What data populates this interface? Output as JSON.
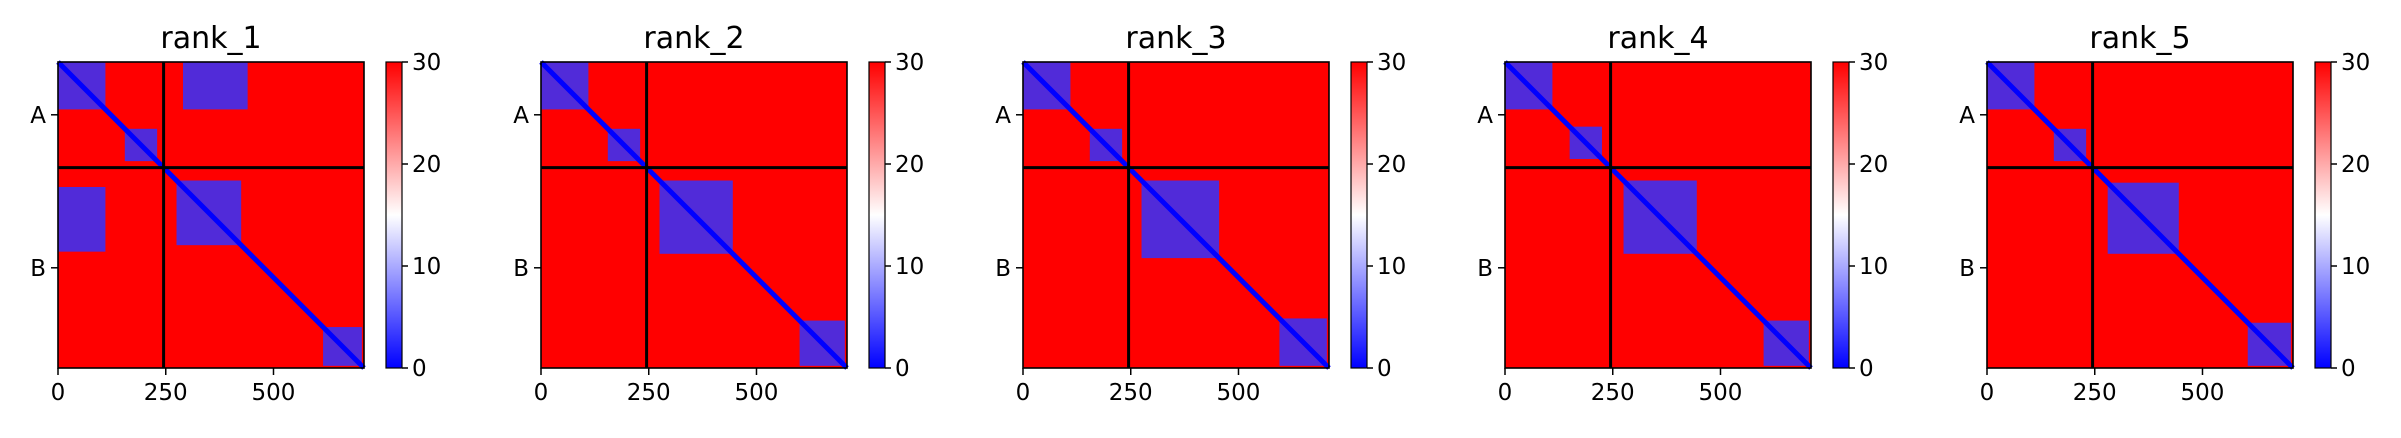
{
  "chart_data": [
    {
      "type": "heatmap",
      "title": "rank_1",
      "chains": [
        "A",
        "B"
      ],
      "x_ticks": [
        "0",
        "250",
        "500"
      ],
      "colorbar_ticks": [
        "0",
        "10",
        "20",
        "30"
      ],
      "value_range": [
        0,
        30
      ],
      "colormap": "bwr",
      "chain_boundary_residue": 245,
      "x_range": [
        0,
        710
      ],
      "blue_blocks": [
        [
          0,
          110,
          0,
          110
        ],
        [
          155,
          230,
          155,
          230
        ],
        [
          275,
          425,
          275,
          425
        ],
        [
          615,
          705,
          615,
          705
        ],
        [
          0,
          110,
          290,
          440
        ],
        [
          290,
          440,
          0,
          110
        ]
      ]
    },
    {
      "type": "heatmap",
      "title": "rank_2",
      "chains": [
        "A",
        "B"
      ],
      "x_ticks": [
        "0",
        "250",
        "500"
      ],
      "colorbar_ticks": [
        "0",
        "10",
        "20",
        "30"
      ],
      "value_range": [
        0,
        30
      ],
      "colormap": "bwr",
      "chain_boundary_residue": 245,
      "x_range": [
        0,
        710
      ],
      "blue_blocks": [
        [
          0,
          110,
          0,
          110
        ],
        [
          155,
          230,
          155,
          230
        ],
        [
          275,
          445,
          275,
          445
        ],
        [
          600,
          705,
          600,
          705
        ]
      ]
    },
    {
      "type": "heatmap",
      "title": "rank_3",
      "chains": [
        "A",
        "B"
      ],
      "x_ticks": [
        "0",
        "250",
        "500"
      ],
      "colorbar_ticks": [
        "0",
        "10",
        "20",
        "30"
      ],
      "value_range": [
        0,
        30
      ],
      "colormap": "bwr",
      "chain_boundary_residue": 245,
      "x_range": [
        0,
        710
      ],
      "blue_blocks": [
        [
          0,
          110,
          0,
          110
        ],
        [
          155,
          230,
          155,
          230
        ],
        [
          275,
          455,
          275,
          455
        ],
        [
          595,
          705,
          595,
          705
        ]
      ]
    },
    {
      "type": "heatmap",
      "title": "rank_4",
      "chains": [
        "A",
        "B"
      ],
      "x_ticks": [
        "0",
        "250",
        "500"
      ],
      "colorbar_ticks": [
        "0",
        "10",
        "20",
        "30"
      ],
      "value_range": [
        0,
        30
      ],
      "colormap": "bwr",
      "chain_boundary_residue": 245,
      "x_range": [
        0,
        710
      ],
      "blue_blocks": [
        [
          0,
          110,
          0,
          110
        ],
        [
          150,
          225,
          150,
          225
        ],
        [
          275,
          445,
          275,
          445
        ],
        [
          600,
          705,
          600,
          705
        ]
      ]
    },
    {
      "type": "heatmap",
      "title": "rank_5",
      "chains": [
        "A",
        "B"
      ],
      "x_ticks": [
        "0",
        "250",
        "500"
      ],
      "colorbar_ticks": [
        "0",
        "10",
        "20",
        "30"
      ],
      "value_range": [
        0,
        30
      ],
      "colormap": "bwr",
      "chain_boundary_residue": 245,
      "x_range": [
        0,
        710
      ],
      "blue_blocks": [
        [
          0,
          110,
          0,
          110
        ],
        [
          155,
          230,
          155,
          230
        ],
        [
          280,
          445,
          280,
          445
        ],
        [
          605,
          705,
          605,
          705
        ]
      ]
    }
  ]
}
